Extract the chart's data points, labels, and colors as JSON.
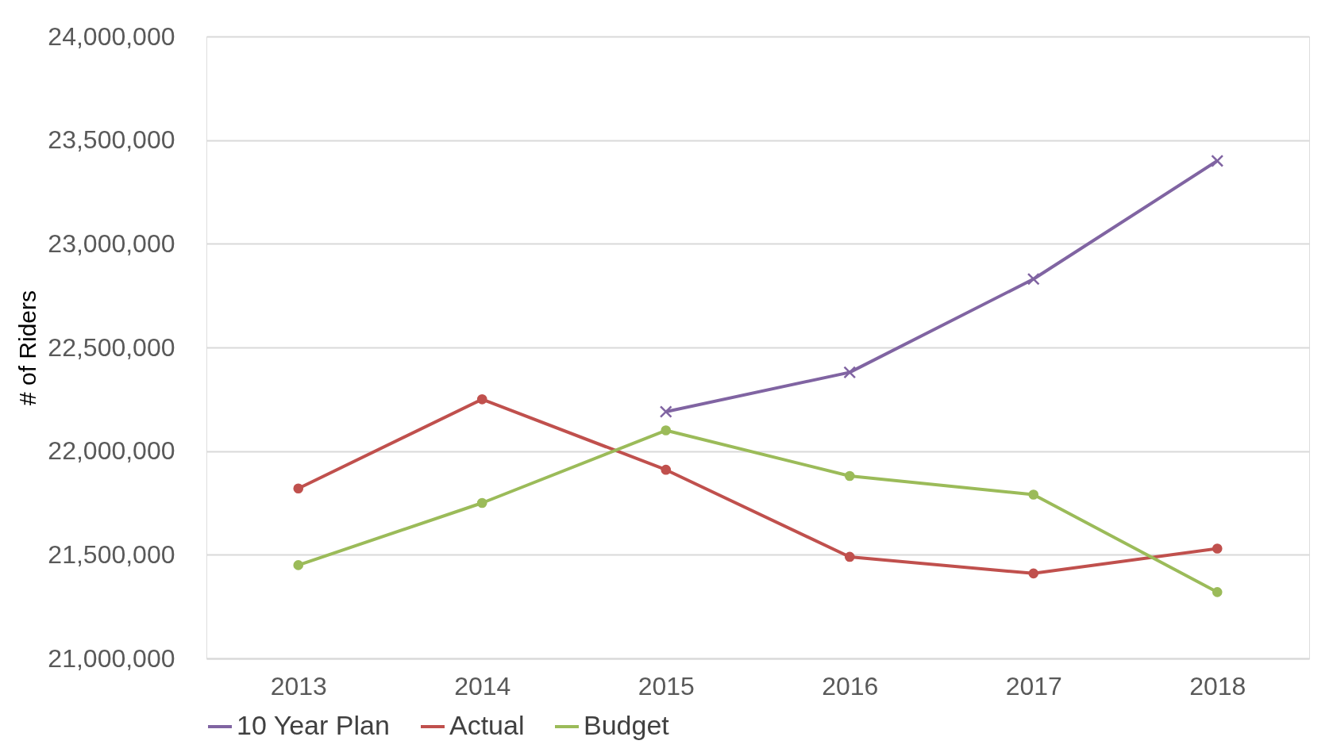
{
  "chart_data": {
    "type": "line",
    "ylabel": "# of Riders",
    "categories": [
      "2013",
      "2014",
      "2015",
      "2016",
      "2017",
      "2018"
    ],
    "series": [
      {
        "name": "10 Year Plan",
        "color": "#8064a2",
        "marker": "cross",
        "values": [
          null,
          null,
          22190000,
          22380000,
          22830000,
          23400000
        ]
      },
      {
        "name": "Actual",
        "color": "#c0504d",
        "marker": "circle",
        "values": [
          21820000,
          22250000,
          21910000,
          21490000,
          21410000,
          21530000
        ]
      },
      {
        "name": "Budget",
        "color": "#9bbb59",
        "marker": "circle",
        "values": [
          21450000,
          21750000,
          22100000,
          21880000,
          21790000,
          21320000
        ]
      }
    ],
    "ylim": [
      21000000,
      24000000
    ],
    "yticks": [
      {
        "value": 21000000,
        "label": "21,000,000"
      },
      {
        "value": 21500000,
        "label": "21,500,000"
      },
      {
        "value": 22000000,
        "label": "22,000,000"
      },
      {
        "value": 22500000,
        "label": "22,500,000"
      },
      {
        "value": 23000000,
        "label": "23,000,000"
      },
      {
        "value": 23500000,
        "label": "23,500,000"
      },
      {
        "value": 24000000,
        "label": "24,000,000"
      }
    ],
    "grid": "y",
    "legend": "bottom"
  }
}
